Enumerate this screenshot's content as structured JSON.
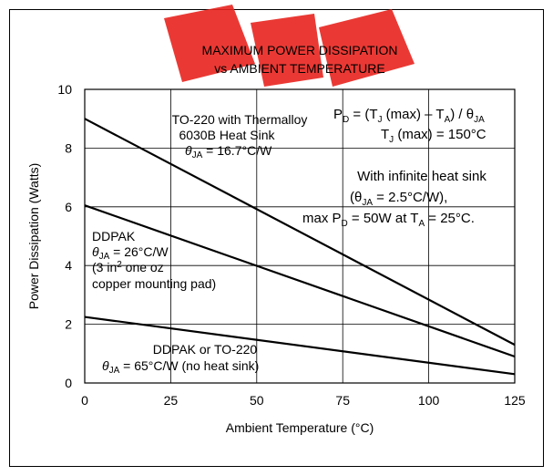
{
  "chart_data": {
    "type": "line",
    "title_line1": "MAXIMUM POWER DISSIPATION",
    "title_line2": "vs AMBIENT TEMPERATURE",
    "xlabel": "Ambient Temperature (°C)",
    "ylabel": "Power Dissipation (Watts)",
    "xlim": [
      0,
      125
    ],
    "ylim": [
      0,
      10
    ],
    "xticks": [
      "0",
      "25",
      "50",
      "75",
      "100",
      "125"
    ],
    "yticks": [
      "0",
      "2",
      "4",
      "6",
      "8",
      "10"
    ],
    "grid": true,
    "series": [
      {
        "x": [
          0,
          125
        ],
        "y": [
          9.0,
          1.3
        ]
      },
      {
        "x": [
          0,
          125
        ],
        "y": [
          6.05,
          0.9
        ]
      },
      {
        "x": [
          0,
          125
        ],
        "y": [
          2.25,
          0.3
        ]
      }
    ],
    "annotations": {
      "to220_1": "TO-220 with Thermalloy",
      "to220_2": "6030B Heat Sink",
      "to220_3_theta": "θ",
      "to220_3_sub": "JA",
      "to220_3_val": " = 16.7°C/W",
      "ddpak_1": "DDPAK",
      "ddpak_2_theta": "θ",
      "ddpak_2_sub": "JA",
      "ddpak_2_val": " = 26°C/W",
      "ddpak_3a": "(3 in",
      "ddpak_3sup": "2",
      "ddpak_3b": " one oz",
      "ddpak_4": "copper mounting pad)",
      "bottom_1": "DDPAK or TO-220",
      "bottom_2_theta": "θ",
      "bottom_2_sub": "JA",
      "bottom_2_val": " = 65°C/W (no heat sink)",
      "eq1_a": "P",
      "eq1_a_sub": "D",
      "eq1_b": " = (T",
      "eq1_b_sub": "J",
      "eq1_c": " (max) – T",
      "eq1_c_sub": "A",
      "eq1_d": ") / θ",
      "eq1_d_sub": "JA",
      "eq2_a": "T",
      "eq2_a_sub": "J",
      "eq2_b": " (max) = 150°C",
      "inf_1": "With infinite heat sink",
      "inf_2_a": "(θ",
      "inf_2_sub": "JA",
      "inf_2_b": " = 2.5°C/W),",
      "inf_3_a": "max P",
      "inf_3_sub1": "D",
      "inf_3_b": " = 50W at T",
      "inf_3_sub2": "A",
      "inf_3_c": " = 25°C."
    }
  },
  "colors": {
    "logo": "#e8231e",
    "line": "#000000"
  }
}
